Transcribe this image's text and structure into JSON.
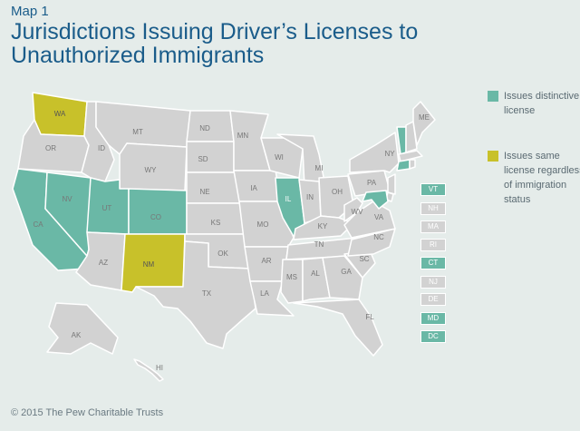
{
  "header": {
    "map_label": "Map 1",
    "title": "Jurisdictions Issuing Driver’s Licenses to Unauthorized Immigrants"
  },
  "legend": [
    {
      "color": "#6ab8a6",
      "text": "Issues distinctive license"
    },
    {
      "color": "#c8c12a",
      "text": "Issues same license regardless of immigration status"
    }
  ],
  "colors": {
    "default": "#d2d2d2",
    "distinctive": "#6ab8a6",
    "same": "#c8c12a",
    "border": "#ffffff",
    "background": "#e5ecea"
  },
  "states": [
    {
      "abbr": "WA",
      "status": "same"
    },
    {
      "abbr": "OR",
      "status": "none"
    },
    {
      "abbr": "CA",
      "status": "distinctive"
    },
    {
      "abbr": "NV",
      "status": "distinctive"
    },
    {
      "abbr": "ID",
      "status": "none"
    },
    {
      "abbr": "MT",
      "status": "none"
    },
    {
      "abbr": "WY",
      "status": "none"
    },
    {
      "abbr": "UT",
      "status": "distinctive"
    },
    {
      "abbr": "CO",
      "status": "distinctive"
    },
    {
      "abbr": "AZ",
      "status": "none"
    },
    {
      "abbr": "NM",
      "status": "same"
    },
    {
      "abbr": "ND",
      "status": "none"
    },
    {
      "abbr": "SD",
      "status": "none"
    },
    {
      "abbr": "NE",
      "status": "none"
    },
    {
      "abbr": "KS",
      "status": "none"
    },
    {
      "abbr": "OK",
      "status": "none"
    },
    {
      "abbr": "TX",
      "status": "none"
    },
    {
      "abbr": "MN",
      "status": "none"
    },
    {
      "abbr": "IA",
      "status": "none"
    },
    {
      "abbr": "MO",
      "status": "none"
    },
    {
      "abbr": "AR",
      "status": "none"
    },
    {
      "abbr": "LA",
      "status": "none"
    },
    {
      "abbr": "WI",
      "status": "none"
    },
    {
      "abbr": "IL",
      "status": "distinctive"
    },
    {
      "abbr": "MI",
      "status": "none"
    },
    {
      "abbr": "IN",
      "status": "none"
    },
    {
      "abbr": "OH",
      "status": "none"
    },
    {
      "abbr": "KY",
      "status": "none"
    },
    {
      "abbr": "TN",
      "status": "none"
    },
    {
      "abbr": "MS",
      "status": "none"
    },
    {
      "abbr": "AL",
      "status": "none"
    },
    {
      "abbr": "GA",
      "status": "none"
    },
    {
      "abbr": "FL",
      "status": "none"
    },
    {
      "abbr": "SC",
      "status": "none"
    },
    {
      "abbr": "NC",
      "status": "none"
    },
    {
      "abbr": "VA",
      "status": "none"
    },
    {
      "abbr": "WV",
      "status": "none"
    },
    {
      "abbr": "PA",
      "status": "none"
    },
    {
      "abbr": "NY",
      "status": "none"
    },
    {
      "abbr": "ME",
      "status": "none"
    },
    {
      "abbr": "AK",
      "status": "none"
    },
    {
      "abbr": "HI",
      "status": "none"
    }
  ],
  "northeast": [
    {
      "abbr": "VT",
      "status": "distinctive"
    },
    {
      "abbr": "NH",
      "status": "none"
    },
    {
      "abbr": "MA",
      "status": "none"
    },
    {
      "abbr": "RI",
      "status": "none"
    },
    {
      "abbr": "CT",
      "status": "distinctive"
    },
    {
      "abbr": "NJ",
      "status": "none"
    },
    {
      "abbr": "DE",
      "status": "none"
    },
    {
      "abbr": "MD",
      "status": "distinctive"
    },
    {
      "abbr": "DC",
      "status": "distinctive"
    }
  ],
  "footer": "© 2015 The Pew Charitable Trusts"
}
